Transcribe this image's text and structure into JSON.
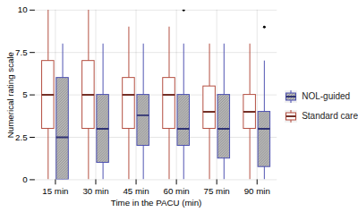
{
  "chart_data": {
    "type": "box",
    "x_label": "Time in the PACU (min)",
    "y_label": "Numerical rating scale",
    "categories": [
      "15 min",
      "30 min",
      "45 min",
      "60 min",
      "75 min",
      "90 min"
    ],
    "ylim": [
      0,
      10
    ],
    "yticks": [
      0,
      2.5,
      5,
      7.5,
      10
    ],
    "grid": true,
    "legend": "right",
    "series": [
      {
        "name": "NOL-guided",
        "color": "#4a4eb0",
        "whisker_low": [
          0,
          0,
          0,
          0,
          0,
          0
        ],
        "q1": [
          0,
          1,
          2,
          2,
          1.25,
          0.75
        ],
        "median": [
          2.5,
          3,
          3.8,
          3,
          3,
          3
        ],
        "q3": [
          6,
          5,
          5,
          5,
          5,
          4
        ],
        "whisker_high": [
          8,
          8,
          8,
          8,
          8,
          7
        ],
        "outliers": [
          [],
          [],
          [],
          [
            10
          ],
          [],
          [
            9
          ]
        ]
      },
      {
        "name": "Standard care",
        "color": "#b24a3c",
        "whisker_low": [
          0,
          0,
          0,
          0,
          0,
          0
        ],
        "q1": [
          3,
          3,
          3,
          3,
          3,
          3
        ],
        "median": [
          5,
          5,
          5,
          5,
          4,
          4
        ],
        "q3": [
          7,
          7,
          6,
          6,
          5.5,
          5
        ],
        "whisker_high": [
          10,
          10,
          9,
          9,
          8,
          8
        ],
        "outliers": [
          [],
          [],
          [],
          [],
          [],
          []
        ]
      }
    ]
  }
}
